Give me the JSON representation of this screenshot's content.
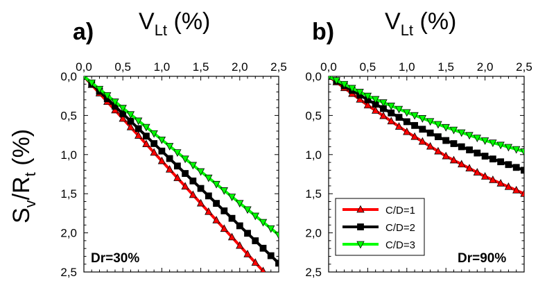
{
  "chart_data": [
    {
      "type": "line",
      "panel_label": "a)",
      "xlabel_main": "V",
      "xlabel_sub": "Lt",
      "xlabel_unit": " (%)",
      "ylabel_main": "S",
      "ylabel_sub1": "v",
      "ylabel_mid": "/R",
      "ylabel_sub2": "t",
      "ylabel_unit": " (%)",
      "xlim": [
        0,
        2.5
      ],
      "ylim": [
        0,
        2.5
      ],
      "y_inverted": true,
      "x_axis_position": "top",
      "xticks": [
        "0,0",
        "0,5",
        "1,0",
        "1,5",
        "2,0",
        "2,5"
      ],
      "yticks": [
        "0,0",
        "0,5",
        "1,0",
        "1,5",
        "2,0",
        "2,5"
      ],
      "annotation": "Dr=30%",
      "series": [
        {
          "name": "C/D=1",
          "color": "#ff0000",
          "marker": "triangle-up",
          "slope": 1.082,
          "x_max": 2.3
        },
        {
          "name": "C/D=2",
          "color": "#000000",
          "marker": "square",
          "slope": 0.955,
          "x_max": 2.5
        },
        {
          "name": "C/D=3",
          "color": "#00ff00",
          "marker": "triangle-down",
          "slope": 0.81,
          "x_max": 2.5
        }
      ]
    },
    {
      "type": "line",
      "panel_label": "b)",
      "xlabel_main": "V",
      "xlabel_sub": "Lt",
      "xlabel_unit": " (%)",
      "xlim": [
        0,
        2.5
      ],
      "ylim": [
        0,
        2.5
      ],
      "y_inverted": true,
      "x_axis_position": "top",
      "xticks": [
        "0,0",
        "0,5",
        "1,0",
        "1,5",
        "2,0",
        "2,5"
      ],
      "yticks": [
        "0,0",
        "0,5",
        "1,0",
        "1,5",
        "2,0",
        "2,5"
      ],
      "annotation": "Dr=90%",
      "legend": {
        "position": "bottom-left",
        "entries": [
          "C/D=1",
          "C/D=2",
          "C/D=3"
        ]
      },
      "series": [
        {
          "name": "C/D=1",
          "color": "#ff0000",
          "marker": "triangle-up",
          "points": [
            [
              0,
              0
            ],
            [
              0.5,
              0.37
            ],
            [
              1.0,
              0.71
            ],
            [
              1.5,
              1.02
            ],
            [
              2.0,
              1.28
            ],
            [
              2.5,
              1.5
            ]
          ]
        },
        {
          "name": "C/D=2",
          "color": "#000000",
          "marker": "square",
          "points": [
            [
              0,
              0
            ],
            [
              0.5,
              0.3
            ],
            [
              1.0,
              0.58
            ],
            [
              1.5,
              0.82
            ],
            [
              2.0,
              1.02
            ],
            [
              2.5,
              1.2
            ]
          ]
        },
        {
          "name": "C/D=3",
          "color": "#00ff00",
          "marker": "triangle-down",
          "points": [
            [
              0,
              0
            ],
            [
              0.5,
              0.25
            ],
            [
              1.0,
              0.46
            ],
            [
              1.5,
              0.65
            ],
            [
              2.0,
              0.82
            ],
            [
              2.5,
              0.96
            ]
          ]
        }
      ]
    }
  ]
}
